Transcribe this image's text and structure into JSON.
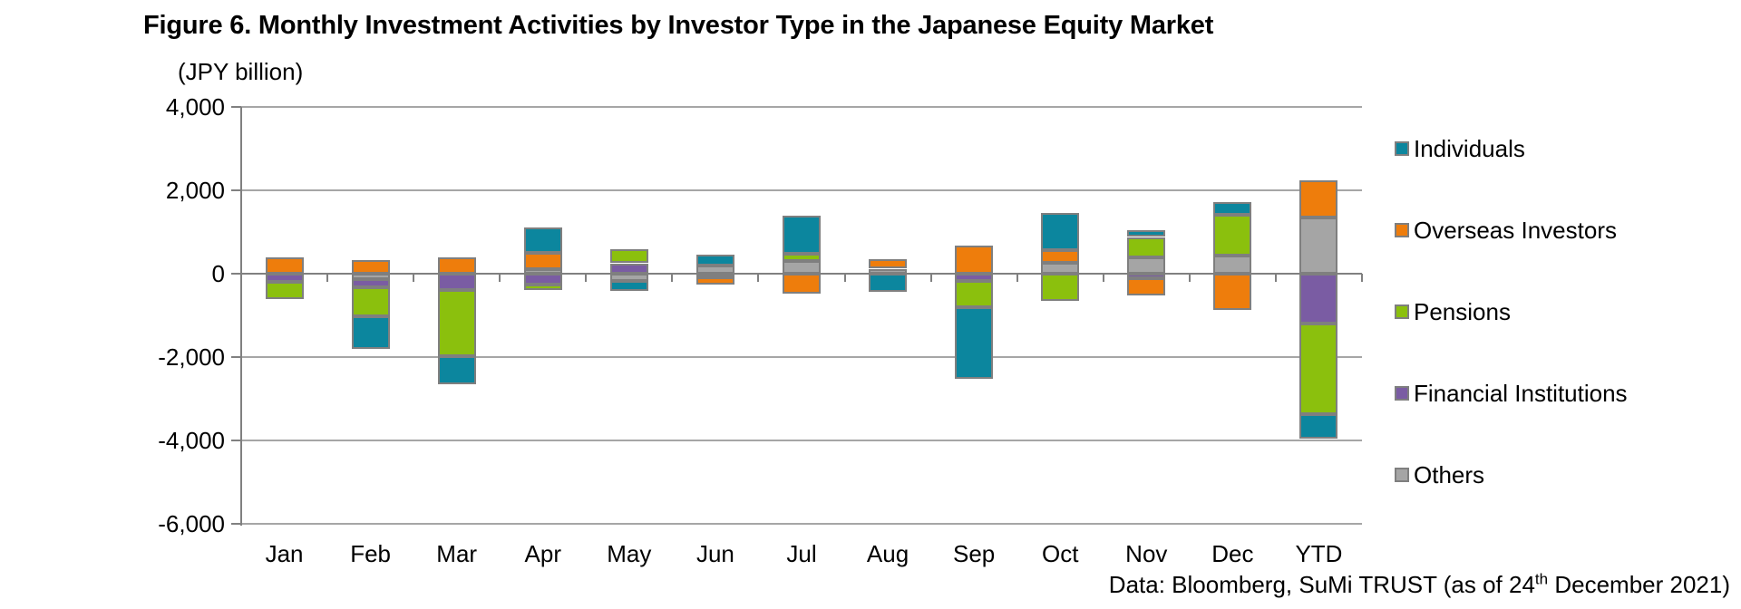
{
  "figure": {
    "title": "Figure 6. Monthly Investment Activities by Investor Type in the Japanese Equity Market",
    "unit_label": "(JPY billion)",
    "source_note": {
      "prefix": "Data: Bloomberg, SuMi TRUST (as of 24",
      "superscript": "th",
      "suffix": " December 2021)"
    }
  },
  "chart_data": {
    "type": "bar",
    "stacked": true,
    "title": "Figure 6. Monthly Investment Activities by Investor Type in the Japanese Equity Market",
    "xlabel": "",
    "ylabel": "(JPY billion)",
    "categories": [
      "Jan",
      "Feb",
      "Mar",
      "Apr",
      "May",
      "Jun",
      "Jul",
      "Aug",
      "Sep",
      "Oct",
      "Nov",
      "Dec",
      "YTD"
    ],
    "series": [
      {
        "name": "Individuals",
        "color": "#0C869E",
        "values": [
          0,
          -770,
          -670,
          600,
          -240,
          250,
          900,
          -440,
          -1720,
          890,
          170,
          300,
          -600
        ]
      },
      {
        "name": "Overseas Investors",
        "color": "#EE7D0C",
        "values": [
          400,
          320,
          400,
          400,
          0,
          -170,
          -475,
          220,
          670,
          310,
          -420,
          -860,
          900
        ]
      },
      {
        "name": "Pensions",
        "color": "#8BC00D",
        "values": [
          -415,
          -690,
          -1590,
          -130,
          330,
          0,
          175,
          0,
          -620,
          -650,
          490,
          980,
          -2160
        ]
      },
      {
        "name": "Financial Institutions",
        "color": "#7A5CA3",
        "values": [
          -185,
          -195,
          -385,
          -260,
          250,
          -95,
          0,
          0,
          -180,
          0,
          -110,
          0,
          -1200
        ]
      },
      {
        "name": "Others",
        "color": "#A5A5A5",
        "values": [
          0,
          -140,
          0,
          105,
          -180,
          200,
          310,
          120,
          0,
          260,
          390,
          430,
          1340
        ]
      }
    ],
    "stack_order_from_axis": [
      "Others",
      "Financial Institutions",
      "Pensions",
      "Overseas Investors",
      "Individuals"
    ],
    "ylim": [
      -6000,
      4000
    ],
    "ytick_interval": 2000,
    "ytick_labels": [
      "4,000",
      "2,000",
      "0",
      "-2,000",
      "-4,000",
      "-6,000"
    ],
    "grid": true,
    "legend_position": "right"
  },
  "style": {
    "grid_color": "#A6A6A6",
    "axis_color": "#808080",
    "bar_border_color": "#7F7F7F",
    "text_color": "#000000",
    "background": "#FFFFFF"
  }
}
